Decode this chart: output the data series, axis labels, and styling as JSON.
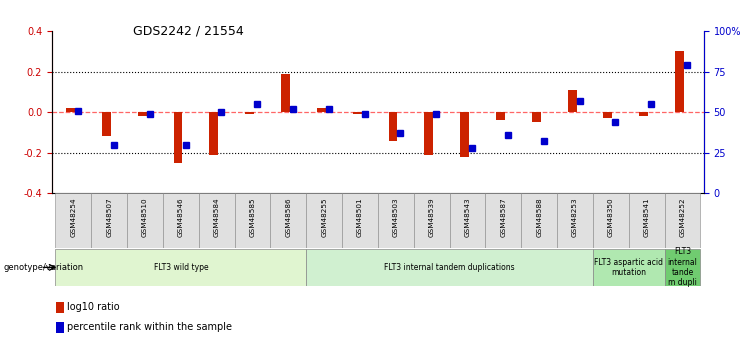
{
  "title": "GDS2242 / 21554",
  "samples": [
    "GSM48254",
    "GSM48507",
    "GSM48510",
    "GSM48546",
    "GSM48584",
    "GSM48585",
    "GSM48586",
    "GSM48255",
    "GSM48501",
    "GSM48503",
    "GSM48539",
    "GSM48543",
    "GSM48587",
    "GSM48588",
    "GSM48253",
    "GSM48350",
    "GSM48541",
    "GSM48252"
  ],
  "log10_ratio": [
    0.02,
    -0.12,
    -0.02,
    -0.25,
    -0.21,
    -0.01,
    0.19,
    0.02,
    -0.01,
    -0.14,
    -0.21,
    -0.22,
    -0.04,
    -0.05,
    0.11,
    -0.03,
    -0.02,
    0.3
  ],
  "percentile_rank": [
    51,
    30,
    49,
    30,
    50,
    55,
    52,
    52,
    49,
    37,
    49,
    28,
    36,
    32,
    57,
    44,
    55,
    79
  ],
  "groups": [
    {
      "label": "FLT3 wild type",
      "start": 0,
      "end": 6,
      "color": "#e0f5d0"
    },
    {
      "label": "FLT3 internal tandem duplications",
      "start": 7,
      "end": 14,
      "color": "#d0f0d0"
    },
    {
      "label": "FLT3 aspartic acid\nmutation",
      "start": 15,
      "end": 16,
      "color": "#b0e8b0"
    },
    {
      "label": "FLT3\ninternal\ntande\nm dupli",
      "start": 17,
      "end": 17,
      "color": "#70cc70"
    }
  ],
  "ylim_left": [
    -0.4,
    0.4
  ],
  "ylim_right": [
    0,
    100
  ],
  "yticks_left": [
    -0.4,
    -0.2,
    0.0,
    0.2,
    0.4
  ],
  "yticks_right": [
    0,
    25,
    50,
    75,
    100
  ],
  "yticklabels_right": [
    "0",
    "25",
    "50",
    "75",
    "100%"
  ],
  "bar_color_red": "#cc2200",
  "bar_color_blue": "#0000cc",
  "background_color": "#ffffff",
  "genotype_label": "genotype/variation",
  "legend_red": "log10 ratio",
  "legend_blue": "percentile rank within the sample"
}
